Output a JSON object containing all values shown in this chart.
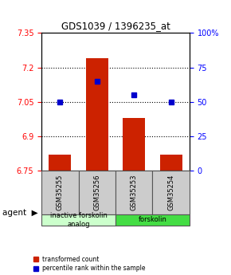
{
  "title": "GDS1039 / 1396235_at",
  "samples": [
    "GSM35255",
    "GSM35256",
    "GSM35253",
    "GSM35254"
  ],
  "bar_values": [
    6.82,
    7.24,
    6.98,
    6.82
  ],
  "percentile_values": [
    50,
    65,
    55,
    50
  ],
  "ylim_left": [
    6.75,
    7.35
  ],
  "ylim_right": [
    0,
    100
  ],
  "yticks_left": [
    6.75,
    6.9,
    7.05,
    7.2,
    7.35
  ],
  "yticks_right": [
    0,
    25,
    50,
    75,
    100
  ],
  "ytick_labels_left": [
    "6.75",
    "6.9",
    "7.05",
    "7.2",
    "7.35"
  ],
  "ytick_labels_right": [
    "0",
    "25",
    "50",
    "75",
    "100%"
  ],
  "hgrid_values": [
    6.9,
    7.05,
    7.2
  ],
  "bar_color": "#cc2200",
  "dot_color": "#0000cc",
  "bar_bottom": 6.75,
  "groups": [
    {
      "label": "inactive forskolin\nanalog",
      "span": [
        0,
        2
      ],
      "color": "#ccffcc"
    },
    {
      "label": "forskolin",
      "span": [
        2,
        4
      ],
      "color": "#44dd44"
    }
  ],
  "agent_label": "agent",
  "legend_red": "transformed count",
  "legend_blue": "percentile rank within the sample",
  "bar_width": 0.6,
  "sample_box_color": "#cccccc",
  "sample_box_edge": "#555555"
}
